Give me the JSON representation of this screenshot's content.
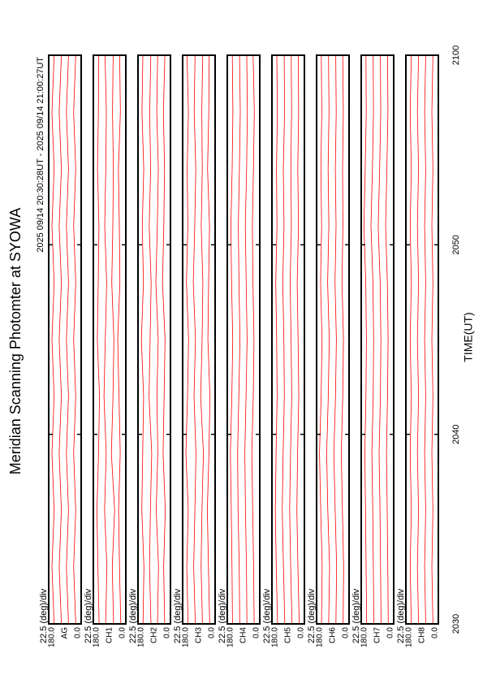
{
  "chart_data": {
    "type": "stacked-panels",
    "title": "Meridian Scanning Photomter at SYOWA",
    "subtitle": "2025 09/14 20:30:28UT - 2025 09/14 21:00:27UT",
    "xlabel": "TIME(UT)",
    "xlim": [
      1230,
      1260
    ],
    "xticks": [
      {
        "value": 1230,
        "label": "2030"
      },
      {
        "value": 1240,
        "label": "2040"
      },
      {
        "value": 1250,
        "label": "2050"
      },
      {
        "value": 1260,
        "label": "2100"
      }
    ],
    "ylim": [
      0,
      180
    ],
    "yticks": [
      {
        "value": 0,
        "label": "0.0"
      },
      {
        "value": 180,
        "label": "180.0"
      }
    ],
    "color": "#ff0000",
    "x": [
      1230,
      1233,
      1236,
      1239,
      1242,
      1245,
      1248,
      1251,
      1254,
      1257,
      1260
    ],
    "panels": [
      {
        "name": "AG",
        "scale_label": "22.5 (deg)/div",
        "traces": [
          [
            30,
            42,
            30,
            42,
            30,
            42,
            30,
            42,
            30,
            42,
            30
          ],
          [
            70,
            82,
            70,
            82,
            70,
            82,
            70,
            82,
            70,
            82,
            70
          ],
          [
            110,
            122,
            110,
            122,
            110,
            122,
            110,
            122,
            110,
            122,
            110
          ],
          [
            150,
            162,
            150,
            162,
            150,
            162,
            150,
            162,
            150,
            162,
            150
          ]
        ]
      },
      {
        "name": "CH1",
        "scale_label": "22.5 (deg)/div",
        "traces": [
          [
            28,
            35,
            40,
            31,
            38,
            45,
            33,
            36,
            41,
            30,
            34
          ],
          [
            68,
            75,
            62,
            80,
            71,
            66,
            78,
            72,
            69,
            74,
            70
          ],
          [
            112,
            105,
            118,
            109,
            121,
            114,
            106,
            117,
            111,
            108,
            115
          ],
          [
            148,
            155,
            160,
            151,
            146,
            158,
            153,
            149,
            157,
            152,
            150
          ]
        ]
      },
      {
        "name": "CH2",
        "scale_label": "22.5 (deg)/div",
        "traces": [
          [
            32,
            38,
            29,
            41,
            35,
            30,
            44,
            37,
            33,
            39,
            31
          ],
          [
            72,
            66,
            79,
            70,
            75,
            68,
            81,
            73,
            67,
            76,
            71
          ],
          [
            108,
            116,
            111,
            104,
            119,
            113,
            107,
            118,
            110,
            115,
            109
          ],
          [
            152,
            147,
            159,
            154,
            149,
            161,
            150,
            156,
            148,
            158,
            153
          ]
        ]
      },
      {
        "name": "CH3",
        "scale_label": "22.5 (deg)/div",
        "traces": [
          [
            30,
            37,
            43,
            34,
            29,
            40,
            36,
            31,
            42,
            35,
            33
          ],
          [
            70,
            78,
            73,
            65,
            80,
            72,
            68,
            77,
            71,
            74,
            69
          ],
          [
            110,
            119,
            112,
            106,
            117,
            109,
            121,
            113,
            107,
            116,
            111
          ],
          [
            150,
            157,
            149,
            162,
            153,
            147,
            159,
            151,
            155,
            148,
            156
          ]
        ]
      },
      {
        "name": "CH4",
        "scale_label": "22.5 (deg)/div",
        "traces": [
          [
            31,
            34,
            39,
            44,
            36,
            32,
            38,
            41,
            35,
            30,
            37
          ],
          [
            71,
            74,
            79,
            83,
            76,
            70,
            75,
            80,
            73,
            69,
            72
          ],
          [
            111,
            114,
            120,
            123,
            116,
            110,
            115,
            119,
            113,
            108,
            112
          ],
          [
            151,
            154,
            158,
            163,
            155,
            150,
            156,
            160,
            153,
            149,
            152
          ]
        ]
      },
      {
        "name": "CH5",
        "scale_label": "22.5 (deg)/div",
        "traces": [
          [
            29,
            36,
            42,
            38,
            31,
            35,
            40,
            33,
            37,
            32,
            34
          ],
          [
            69,
            76,
            82,
            77,
            70,
            74,
            79,
            72,
            75,
            71,
            73
          ],
          [
            109,
            116,
            123,
            118,
            111,
            114,
            120,
            113,
            117,
            110,
            112
          ],
          [
            149,
            156,
            161,
            157,
            151,
            154,
            159,
            152,
            155,
            150,
            153
          ]
        ]
      },
      {
        "name": "CH6",
        "scale_label": "22.5 (deg)/div",
        "traces": [
          [
            33,
            30,
            37,
            43,
            35,
            31,
            39,
            34,
            36,
            32,
            35
          ],
          [
            73,
            69,
            77,
            84,
            75,
            70,
            78,
            72,
            76,
            71,
            74
          ],
          [
            113,
            108,
            118,
            124,
            115,
            110,
            119,
            112,
            116,
            111,
            114
          ],
          [
            153,
            149,
            157,
            164,
            155,
            150,
            158,
            152,
            156,
            151,
            154
          ]
        ]
      },
      {
        "name": "CH7",
        "scale_label": "22.5 (deg)/div",
        "traces": [
          [
            30,
            33,
            36,
            40,
            34,
            31,
            35,
            45,
            38,
            32,
            34
          ],
          [
            70,
            73,
            76,
            81,
            74,
            71,
            75,
            86,
            78,
            72,
            74
          ],
          [
            110,
            113,
            116,
            121,
            114,
            111,
            115,
            126,
            118,
            112,
            114
          ],
          [
            150,
            153,
            156,
            160,
            154,
            151,
            155,
            165,
            158,
            152,
            154
          ]
        ]
      },
      {
        "name": "CH8",
        "scale_label": "22.5 (deg)/div",
        "traces": [
          [
            30,
            36,
            30,
            36,
            30,
            36,
            30,
            36,
            30,
            36,
            30
          ],
          [
            70,
            76,
            70,
            76,
            70,
            76,
            70,
            76,
            70,
            76,
            70
          ],
          [
            110,
            116,
            110,
            116,
            110,
            116,
            110,
            116,
            110,
            116,
            110
          ],
          [
            150,
            156,
            150,
            156,
            150,
            156,
            150,
            156,
            150,
            156,
            150
          ]
        ]
      }
    ]
  }
}
